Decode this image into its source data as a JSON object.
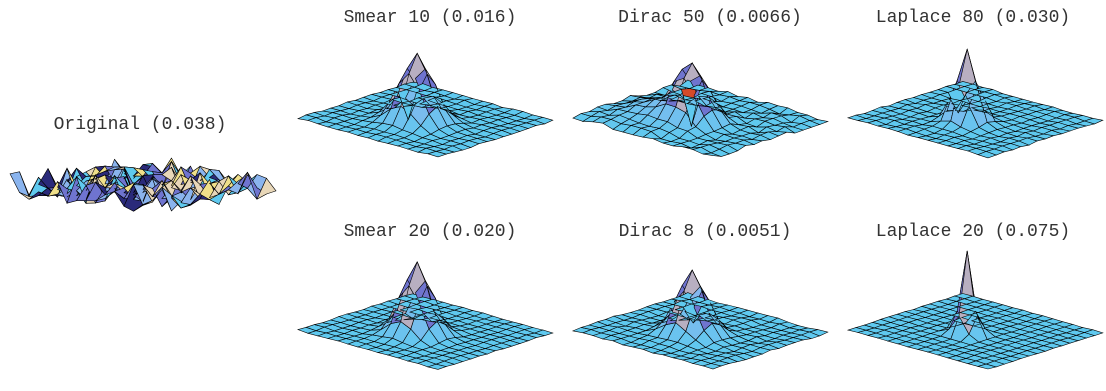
{
  "figure": {
    "panels": [
      {
        "id": "original",
        "title": "Original (0.038)",
        "surface": "noise"
      },
      {
        "id": "smear-10",
        "title": "Smear 10 (0.016)",
        "surface": "smooth-peak-with-notch"
      },
      {
        "id": "dirac-50",
        "title": "Dirac 50 (0.0066)",
        "surface": "peak-with-ridges-and-notch"
      },
      {
        "id": "laplace-80",
        "title": "Laplace 80 (0.030)",
        "surface": "sharp-peak-with-notch"
      },
      {
        "id": "smear-20",
        "title": "Smear 20 (0.020)",
        "surface": "smooth-peak"
      },
      {
        "id": "dirac-8",
        "title": "Dirac 8 (0.0051)",
        "surface": "peak-with-small-notch"
      },
      {
        "id": "laplace-20",
        "title": "Laplace 20 (0.075)",
        "surface": "spike"
      }
    ],
    "colors": {
      "surface_low": "#5fc9ef",
      "surface_mid": "#8ab4ee",
      "peak_face": "#6f74cf",
      "peak_highlight": "#e8d7b8",
      "notch_red": "#d64a2a",
      "edge": "#000000"
    }
  }
}
